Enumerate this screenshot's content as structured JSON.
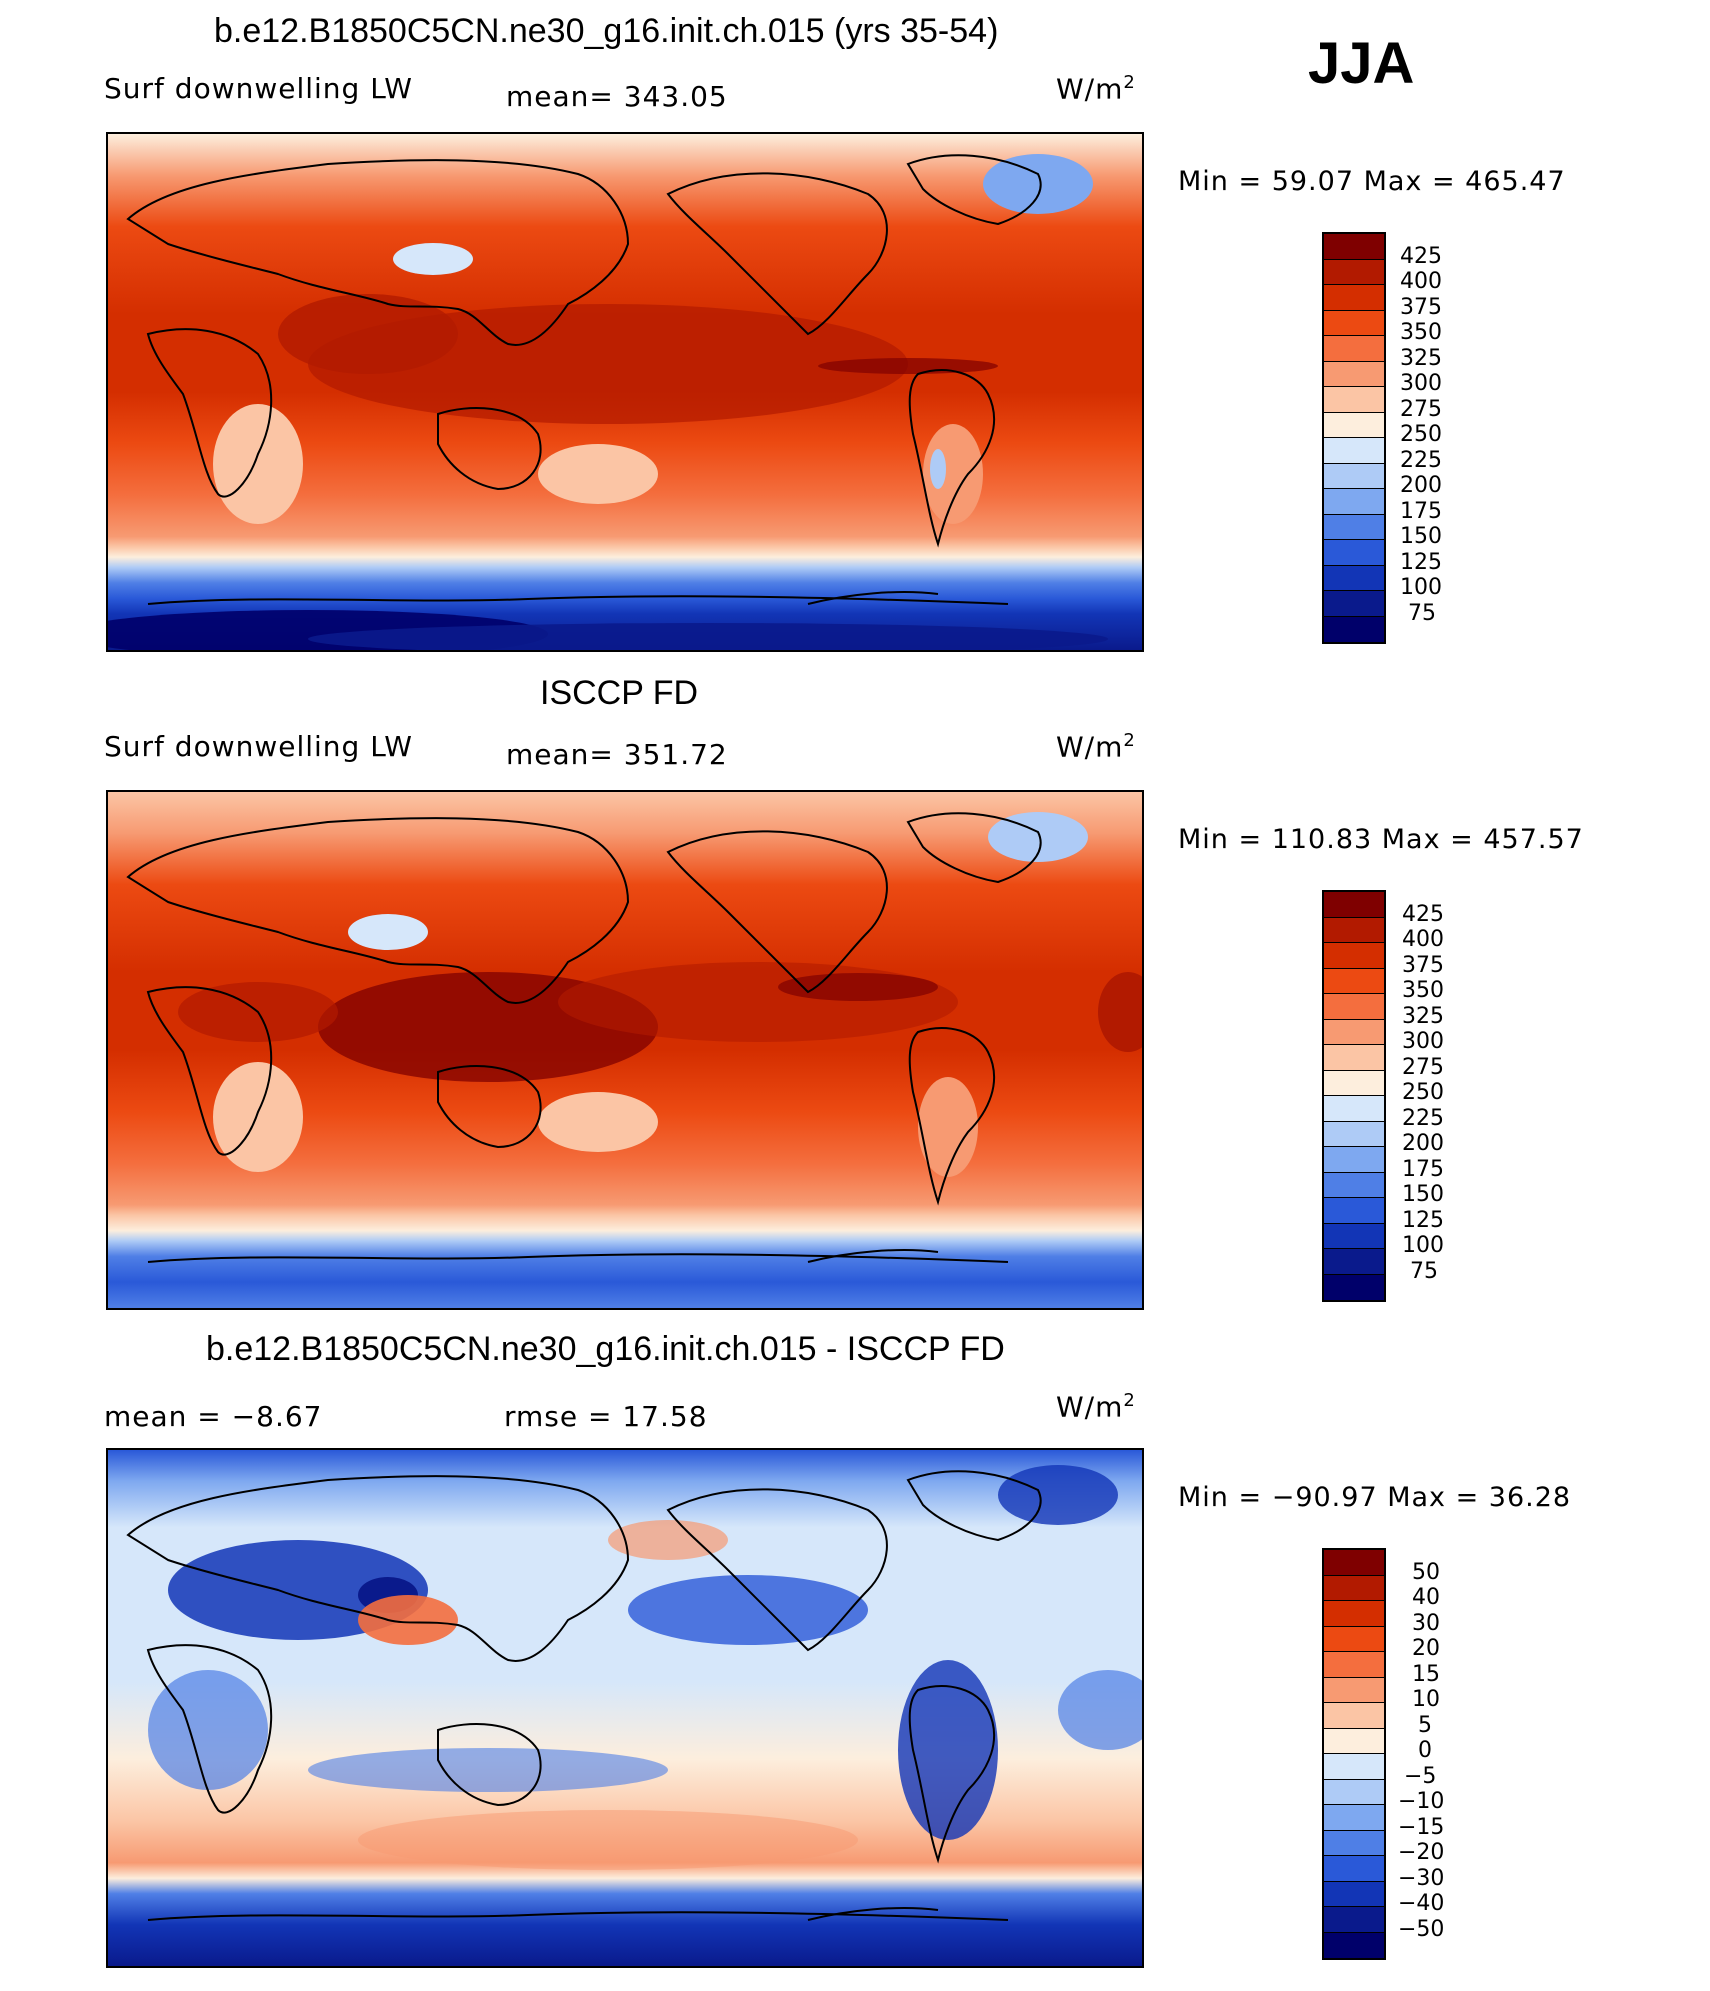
{
  "season": "JJA",
  "panels": [
    {
      "title": "b.e12.B1850C5CN.ne30_g16.init.ch.015 (yrs 35-54)",
      "left_label": "Surf downwelling LW",
      "stat1": "mean= 343.05",
      "stat2": "",
      "units": "W/m",
      "units_sup": "2",
      "minmax": "Min =  59.07 Max = 465.47",
      "colorbar_labels": [
        "425",
        "400",
        "375",
        "350",
        "325",
        "300",
        "275",
        "250",
        "225",
        "200",
        "175",
        "150",
        "125",
        "100",
        "75"
      ]
    },
    {
      "title": "ISCCP FD",
      "left_label": "Surf downwelling LW",
      "stat1": "mean= 351.72",
      "stat2": "",
      "units": "W/m",
      "units_sup": "2",
      "minmax": "Min = 110.83 Max = 457.57",
      "colorbar_labels": [
        "425",
        "400",
        "375",
        "350",
        "325",
        "300",
        "275",
        "250",
        "225",
        "200",
        "175",
        "150",
        "125",
        "100",
        "75"
      ]
    },
    {
      "title": "b.e12.B1850C5CN.ne30_g16.init.ch.015 - ISCCP FD",
      "left_label": "mean =   −8.67",
      "stat1": "rmse =   17.58",
      "stat2": "",
      "units": "W/m",
      "units_sup": "2",
      "minmax": "Min = −90.97 Max =   36.28",
      "colorbar_labels": [
        "50",
        "40",
        "30",
        "20",
        "15",
        "10",
        "5",
        "0",
        "−5",
        "−10",
        "−15",
        "−20",
        "−30",
        "−40",
        "−50"
      ]
    }
  ],
  "colors": {
    "scale": [
      "#7f0000",
      "#b21a00",
      "#d42e00",
      "#ec4a12",
      "#f46e3e",
      "#f79a72",
      "#fbc5a5",
      "#fdeedd",
      "#d6e7fa",
      "#aecbf6",
      "#7ea8f0",
      "#4f7fe6",
      "#2a59d8",
      "#1235b6",
      "#0a1a8c",
      "#00006a"
    ],
    "land_line": "#000000"
  }
}
